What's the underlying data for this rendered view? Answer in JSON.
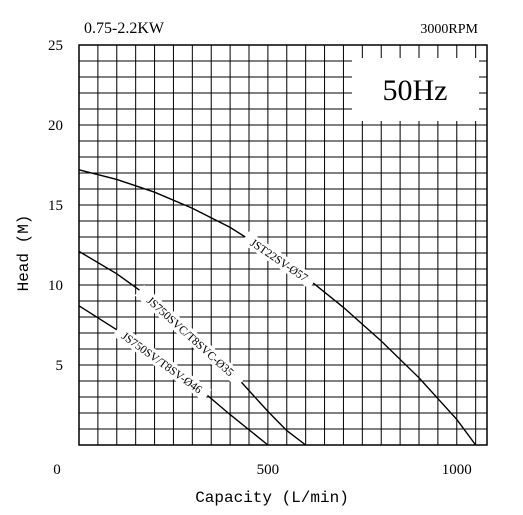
{
  "chart_data": {
    "type": "line",
    "subtitle_left": "0.75-2.2KW",
    "subtitle_right": "3000RPM",
    "frequency_label": "50Hz",
    "xlabel": "Capacity (L/min)",
    "ylabel": "Head (M)",
    "xlim": [
      0,
      1080
    ],
    "ylim": [
      0,
      25
    ],
    "x_ticks": [
      {
        "value": 0,
        "label": "0"
      },
      {
        "value": 500,
        "label": "500"
      },
      {
        "value": 1000,
        "label": "1000"
      }
    ],
    "y_ticks": [
      {
        "value": 5,
        "label": "5"
      },
      {
        "value": 10,
        "label": "10"
      },
      {
        "value": 15,
        "label": "15"
      },
      {
        "value": 20,
        "label": "20"
      },
      {
        "value": 25,
        "label": "25"
      }
    ],
    "grid": true,
    "series": [
      {
        "name": "JST22SV-Ø57",
        "x": [
          0,
          100,
          200,
          300,
          400,
          500,
          600,
          700,
          800,
          900,
          1000,
          1050
        ],
        "y": [
          17.2,
          16.6,
          15.8,
          14.8,
          13.6,
          12.1,
          10.5,
          8.6,
          6.5,
          4.2,
          1.6,
          0
        ]
      },
      {
        "name": "JS750SVC/T8SVC-Ø35",
        "x": [
          0,
          100,
          200,
          300,
          400,
          500,
          550,
          600
        ],
        "y": [
          12.1,
          10.7,
          9.0,
          7.0,
          4.7,
          2.1,
          0.9,
          0
        ]
      },
      {
        "name": "JS750SV/T8SV-Ø46",
        "x": [
          0,
          100,
          200,
          300,
          400,
          500
        ],
        "y": [
          8.7,
          7.2,
          5.6,
          3.9,
          1.9,
          0
        ]
      }
    ]
  }
}
